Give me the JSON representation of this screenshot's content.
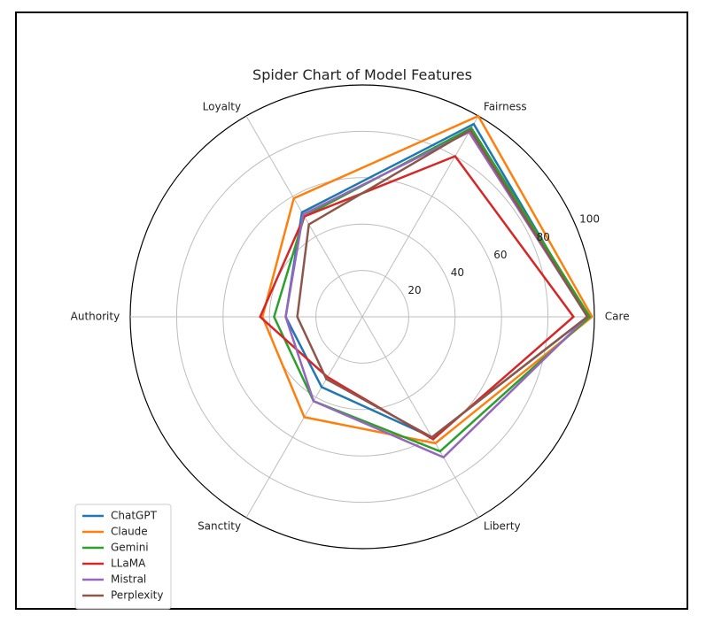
{
  "chart_data": {
    "type": "radar",
    "title": "Spider Chart of Model Features",
    "axes": [
      "Care",
      "Fairness",
      "Loyalty",
      "Authority",
      "Sanctity",
      "Liberty"
    ],
    "rlim": [
      0,
      100
    ],
    "radial_ticks": [
      20,
      40,
      60,
      80,
      100
    ],
    "radial_tick_labels": [
      "20",
      "40",
      "60",
      "80",
      "100"
    ],
    "grid": true,
    "legend_position": "lower-left",
    "series": [
      {
        "name": "ChatGPT",
        "color": "#1f77b4",
        "values": [
          97,
          96,
          52,
          33,
          35,
          60
        ]
      },
      {
        "name": "Claude",
        "color": "#ff7f0e",
        "values": [
          99,
          100,
          59,
          43,
          50,
          63
        ]
      },
      {
        "name": "Gemini",
        "color": "#2ca02c",
        "values": [
          98,
          94,
          50,
          38,
          42,
          67
        ]
      },
      {
        "name": "LLaMA",
        "color": "#d62728",
        "values": [
          91,
          80,
          50,
          44,
          30,
          61
        ]
      },
      {
        "name": "Mistral",
        "color": "#9467bd",
        "values": [
          97,
          92,
          51,
          33,
          42,
          70
        ]
      },
      {
        "name": "Perplexity",
        "color": "#8c564b",
        "values": [
          97,
          93,
          46,
          28,
          31,
          60
        ]
      }
    ]
  }
}
